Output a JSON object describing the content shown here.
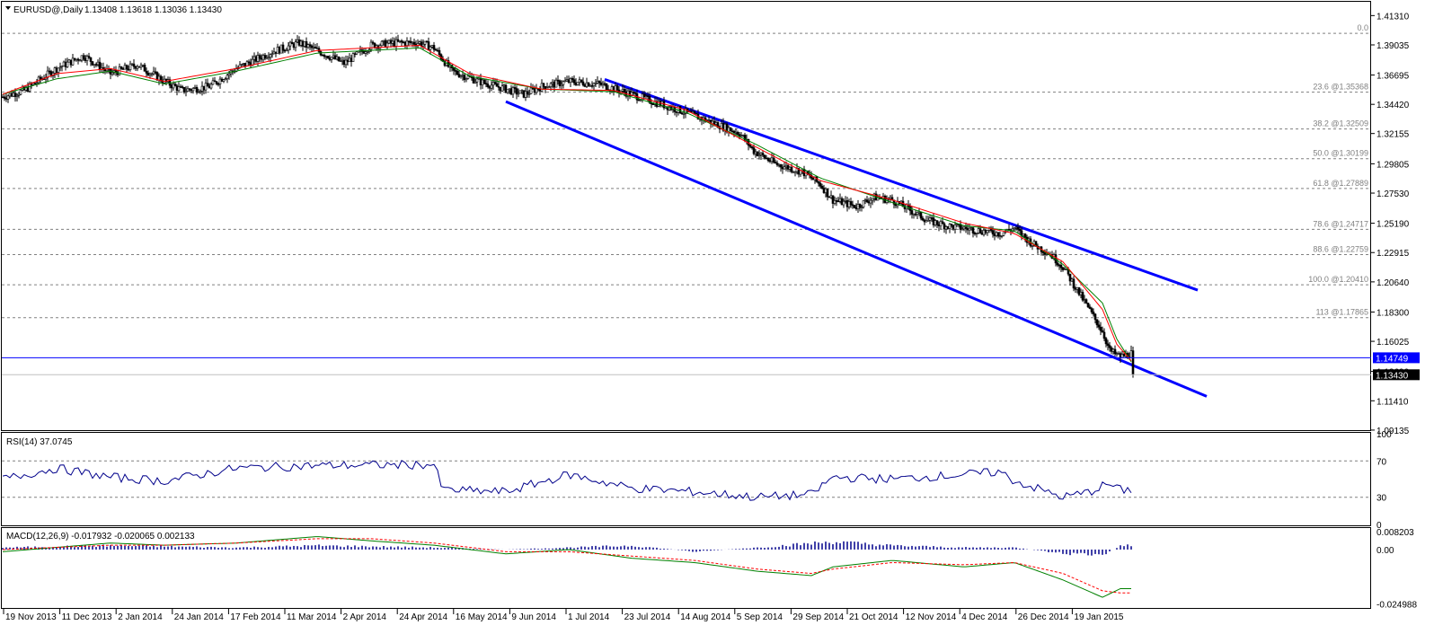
{
  "header": {
    "symbol_label": "EURUSD@,Daily",
    "ohlc_label": "1.13408 1.13618 1.13036 1.13430"
  },
  "price_axis": {
    "ticks": [
      "1.41310",
      "1.39035",
      "1.36695",
      "1.34420",
      "1.32155",
      "1.29805",
      "1.27530",
      "1.25190",
      "1.22915",
      "1.20640",
      "1.18300",
      "1.16025",
      "1.13690",
      "1.11410",
      "1.09135"
    ],
    "current_price": "1.13430",
    "hline_price": "1.14749"
  },
  "time_axis": {
    "labels": [
      "19 Nov 2013",
      "11 Dec 2013",
      "2 Jan 2014",
      "24 Jan 2014",
      "17 Feb 2014",
      "11 Mar 2014",
      "2 Apr 2014",
      "24 Apr 2014",
      "16 May 2014",
      "9 Jun 2014",
      "1 Jul 2014",
      "23 Jul 2014",
      "14 Aug 2014",
      "5 Sep 2014",
      "29 Sep 2014",
      "21 Oct 2014",
      "12 Nov 2014",
      "4 Dec 2014",
      "26 Dec 2014",
      "19 Jan 2015"
    ]
  },
  "fib_levels": [
    {
      "label": "0.0",
      "price": 1.3993
    },
    {
      "label": "23.6 @1.35368",
      "price": 1.35368
    },
    {
      "label": "38.2 @1.32509",
      "price": 1.32509
    },
    {
      "label": "50.0 @1.30199",
      "price": 1.30199
    },
    {
      "label": "61.8 @1.27889",
      "price": 1.27889
    },
    {
      "label": "78.6 @1.24717",
      "price": 1.24717
    },
    {
      "label": "88.6 @1.22759",
      "price": 1.22759
    },
    {
      "label": "100.0 @1.20410",
      "price": 1.2041
    },
    {
      "label": "113 @1.17865",
      "price": 1.17865
    }
  ],
  "rsi": {
    "label": "RSI(14) 37.0745",
    "scale_labels": [
      "100",
      "70",
      "30",
      "0"
    ],
    "levels": [
      70,
      30
    ]
  },
  "macd": {
    "label": "MACD(12,26,9) -0.017932 -0.020065 0.002133",
    "scale_labels": [
      "0.008203",
      "0.00",
      "-0.024988"
    ]
  },
  "chart_data": {
    "type": "candlestick",
    "symbol": "EURUSD@",
    "timeframe": "Daily",
    "open": 1.13408,
    "high": 1.13618,
    "low": 1.13036,
    "close": 1.1343,
    "ylim": [
      1.0913,
      1.4231
    ],
    "price_path": [
      [
        0,
        1.35
      ],
      [
        12,
        1.355
      ],
      [
        30,
        1.372
      ],
      [
        45,
        1.382
      ],
      [
        60,
        1.368
      ],
      [
        75,
        1.375
      ],
      [
        90,
        1.362
      ],
      [
        100,
        1.355
      ],
      [
        115,
        1.358
      ],
      [
        130,
        1.372
      ],
      [
        150,
        1.385
      ],
      [
        165,
        1.392
      ],
      [
        175,
        1.386
      ],
      [
        190,
        1.376
      ],
      [
        205,
        1.39
      ],
      [
        220,
        1.392
      ],
      [
        232,
        1.392
      ],
      [
        240,
        1.388
      ],
      [
        250,
        1.37
      ],
      [
        265,
        1.362
      ],
      [
        280,
        1.356
      ],
      [
        290,
        1.352
      ],
      [
        300,
        1.358
      ],
      [
        315,
        1.362
      ],
      [
        332,
        1.36
      ],
      [
        350,
        1.352
      ],
      [
        365,
        1.345
      ],
      [
        380,
        1.338
      ],
      [
        395,
        1.33
      ],
      [
        410,
        1.322
      ],
      [
        418,
        1.308
      ],
      [
        430,
        1.298
      ],
      [
        445,
        1.292
      ],
      [
        455,
        1.282
      ],
      [
        462,
        1.27
      ],
      [
        475,
        1.265
      ],
      [
        485,
        1.272
      ],
      [
        495,
        1.27
      ],
      [
        505,
        1.262
      ],
      [
        515,
        1.254
      ],
      [
        525,
        1.25
      ],
      [
        535,
        1.248
      ],
      [
        545,
        1.246
      ],
      [
        555,
        1.244
      ],
      [
        563,
        1.248
      ],
      [
        573,
        1.236
      ],
      [
        583,
        1.228
      ],
      [
        590,
        1.218
      ],
      [
        598,
        1.2
      ],
      [
        605,
        1.184
      ],
      [
        612,
        1.168
      ],
      [
        616,
        1.153
      ],
      [
        622,
        1.148
      ],
      [
        630,
        1.152
      ]
    ],
    "sma_path": [
      [
        0,
        1.352
      ],
      [
        30,
        1.368
      ],
      [
        60,
        1.372
      ],
      [
        90,
        1.362
      ],
      [
        130,
        1.372
      ],
      [
        175,
        1.386
      ],
      [
        232,
        1.39
      ],
      [
        260,
        1.368
      ],
      [
        300,
        1.356
      ],
      [
        340,
        1.355
      ],
      [
        380,
        1.34
      ],
      [
        418,
        1.312
      ],
      [
        455,
        1.285
      ],
      [
        495,
        1.27
      ],
      [
        535,
        1.252
      ],
      [
        563,
        1.244
      ],
      [
        590,
        1.222
      ],
      [
        612,
        1.185
      ],
      [
        620,
        1.158
      ],
      [
        630,
        1.142
      ]
    ],
    "ema_path": [
      [
        0,
        1.352
      ],
      [
        30,
        1.364
      ],
      [
        60,
        1.37
      ],
      [
        90,
        1.36
      ],
      [
        130,
        1.37
      ],
      [
        175,
        1.384
      ],
      [
        232,
        1.388
      ],
      [
        260,
        1.366
      ],
      [
        300,
        1.356
      ],
      [
        340,
        1.354
      ],
      [
        380,
        1.338
      ],
      [
        418,
        1.314
      ],
      [
        455,
        1.287
      ],
      [
        495,
        1.268
      ],
      [
        535,
        1.25
      ],
      [
        563,
        1.246
      ],
      [
        590,
        1.22
      ],
      [
        612,
        1.19
      ],
      [
        620,
        1.162
      ],
      [
        630,
        1.14
      ]
    ],
    "trendlines": [
      {
        "bar0": 335,
        "p0": 1.3636,
        "bar1": 665,
        "p1": 1.2
      },
      {
        "bar0": 280,
        "p0": 1.3463,
        "bar1": 670,
        "p1": 1.1175
      }
    ],
    "rsi_values": [
      [
        0,
        50
      ],
      [
        30,
        62
      ],
      [
        60,
        52
      ],
      [
        90,
        48
      ],
      [
        130,
        62
      ],
      [
        175,
        65
      ],
      [
        240,
        66
      ],
      [
        245,
        38
      ],
      [
        280,
        36
      ],
      [
        315,
        55
      ],
      [
        350,
        40
      ],
      [
        385,
        36
      ],
      [
        420,
        30
      ],
      [
        450,
        33
      ],
      [
        462,
        52
      ],
      [
        495,
        50
      ],
      [
        535,
        55
      ],
      [
        555,
        58
      ],
      [
        563,
        48
      ],
      [
        590,
        30
      ],
      [
        605,
        36
      ],
      [
        615,
        45
      ],
      [
        622,
        38
      ]
    ],
    "macd_hist": [
      [
        0,
        0.001
      ],
      [
        60,
        0.002
      ],
      [
        130,
        0.001
      ],
      [
        175,
        0.002
      ],
      [
        240,
        0.001
      ],
      [
        280,
        0.0
      ],
      [
        315,
        0.001
      ],
      [
        350,
        0.002
      ],
      [
        385,
        -0.001
      ],
      [
        420,
        0.001
      ],
      [
        462,
        0.004
      ],
      [
        495,
        0.002
      ],
      [
        535,
        0.001
      ],
      [
        563,
        0.001
      ],
      [
        590,
        -0.002
      ],
      [
        612,
        -0.003
      ],
      [
        622,
        0.002
      ]
    ],
    "macd_line": [
      [
        0,
        -0.001
      ],
      [
        30,
        0.001
      ],
      [
        60,
        0.003
      ],
      [
        90,
        0.002
      ],
      [
        130,
        0.003
      ],
      [
        175,
        0.006
      ],
      [
        205,
        0.004
      ],
      [
        240,
        0.002
      ],
      [
        280,
        -0.002
      ],
      [
        315,
        0.0
      ],
      [
        350,
        -0.004
      ],
      [
        385,
        -0.006
      ],
      [
        420,
        -0.01
      ],
      [
        450,
        -0.012
      ],
      [
        462,
        -0.008
      ],
      [
        495,
        -0.005
      ],
      [
        535,
        -0.008
      ],
      [
        563,
        -0.006
      ],
      [
        590,
        -0.014
      ],
      [
        612,
        -0.022
      ],
      [
        622,
        -0.018
      ]
    ],
    "macd_signal": [
      [
        0,
        0.0
      ],
      [
        30,
        0.001
      ],
      [
        60,
        0.002
      ],
      [
        90,
        0.002
      ],
      [
        130,
        0.003
      ],
      [
        175,
        0.005
      ],
      [
        205,
        0.005
      ],
      [
        240,
        0.003
      ],
      [
        280,
        -0.001
      ],
      [
        315,
        -0.001
      ],
      [
        350,
        -0.003
      ],
      [
        385,
        -0.005
      ],
      [
        420,
        -0.009
      ],
      [
        450,
        -0.011
      ],
      [
        462,
        -0.009
      ],
      [
        495,
        -0.006
      ],
      [
        535,
        -0.007
      ],
      [
        563,
        -0.006
      ],
      [
        590,
        -0.011
      ],
      [
        612,
        -0.019
      ],
      [
        622,
        -0.02
      ]
    ]
  },
  "colors": {
    "candle": "#000000",
    "sma": "#ff0000",
    "ema": "#008000",
    "trend": "#0000ff",
    "grid": "#808080",
    "rsi": "#00008b",
    "macd_hist": "#00008b",
    "macd_signal": "#ff0000",
    "macd_line": "#008000"
  }
}
